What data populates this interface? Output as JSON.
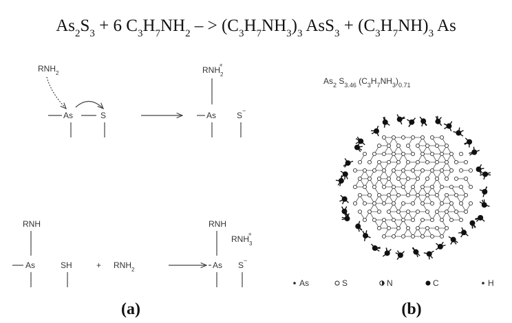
{
  "equation": [
    "As",
    "2",
    "S",
    "3",
    " + 6 C",
    "3",
    "H",
    "7",
    "NH",
    "2",
    " – > (C",
    "3",
    "H",
    "7",
    "NH",
    "3",
    ")",
    "3",
    " AsS",
    "3",
    " + (C",
    "3",
    "H",
    "7",
    "NH)",
    "3",
    " As"
  ],
  "scheme": {
    "step1": {
      "reagent": {
        "base": "RNH",
        "sub": "2"
      },
      "left_as": "As",
      "left_s": "S",
      "product_reagent": {
        "base": "RNH",
        "sub": "2",
        "sup": "+"
      },
      "product_as": "As",
      "product_s": {
        "base": "S",
        "sup": "−"
      }
    },
    "step2": {
      "left_rnh": "RNH",
      "left_as": "As",
      "left_sh": "SH",
      "plus": "+",
      "reagent": {
        "base": "RNH",
        "sub": "2"
      },
      "product_rnh": "RNH",
      "product_as": "As",
      "product_cation": {
        "base": "RNH",
        "sub": "3",
        "sup": "+"
      },
      "product_s": {
        "base": "S",
        "sup": "−"
      }
    }
  },
  "cluster": {
    "formula": [
      "As",
      "2",
      " S",
      "3.46",
      " (C",
      "3",
      "H",
      "7",
      "NH",
      "3",
      ")",
      "0.71"
    ],
    "legend": [
      "As",
      "S",
      "N",
      "C",
      "H"
    ]
  },
  "labels": {
    "a": "(a)",
    "b": "(b)"
  }
}
